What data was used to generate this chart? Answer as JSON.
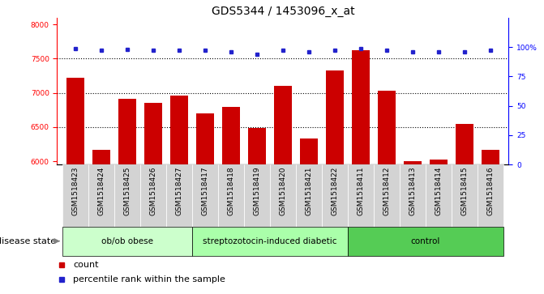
{
  "title": "GDS5344 / 1453096_x_at",
  "samples": [
    "GSM1518423",
    "GSM1518424",
    "GSM1518425",
    "GSM1518426",
    "GSM1518427",
    "GSM1518417",
    "GSM1518418",
    "GSM1518419",
    "GSM1518420",
    "GSM1518421",
    "GSM1518422",
    "GSM1518411",
    "GSM1518412",
    "GSM1518413",
    "GSM1518414",
    "GSM1518415",
    "GSM1518416"
  ],
  "counts": [
    7220,
    6170,
    6910,
    6850,
    6960,
    6700,
    6800,
    6490,
    7100,
    6330,
    7330,
    7620,
    7030,
    6000,
    6020,
    6540,
    6170
  ],
  "percentile_ranks": [
    99,
    97,
    98,
    97,
    97,
    97,
    96,
    94,
    97,
    96,
    97,
    99,
    97,
    96,
    96,
    96,
    97
  ],
  "groups": [
    {
      "label": "ob/ob obese",
      "start": 0,
      "end": 5,
      "color": "#ccffcc"
    },
    {
      "label": "streptozotocin-induced diabetic",
      "start": 5,
      "end": 11,
      "color": "#aaffaa"
    },
    {
      "label": "control",
      "start": 11,
      "end": 17,
      "color": "#55cc55"
    }
  ],
  "bar_color": "#cc0000",
  "dot_color": "#2222cc",
  "ylim_left": [
    5950,
    8100
  ],
  "ylim_right": [
    0,
    125
  ],
  "yticks_left": [
    6000,
    6500,
    7000,
    7500,
    8000
  ],
  "yticks_right": [
    0,
    25,
    50,
    75,
    100
  ],
  "ytick_labels_right": [
    "0",
    "25",
    "50",
    "75",
    "100%"
  ],
  "grid_values": [
    6500,
    7000,
    7500
  ],
  "bar_width": 0.7,
  "group_colors": [
    "#ccffcc",
    "#aaffaa",
    "#55cc55"
  ],
  "gray_box_color": "#d3d3d3",
  "disease_state_label": "disease state",
  "legend_count_label": "count",
  "legend_percentile_label": "percentile rank within the sample",
  "title_fontsize": 10,
  "tick_fontsize": 6.5,
  "label_fontsize": 8,
  "group_label_fontsize": 7.5
}
